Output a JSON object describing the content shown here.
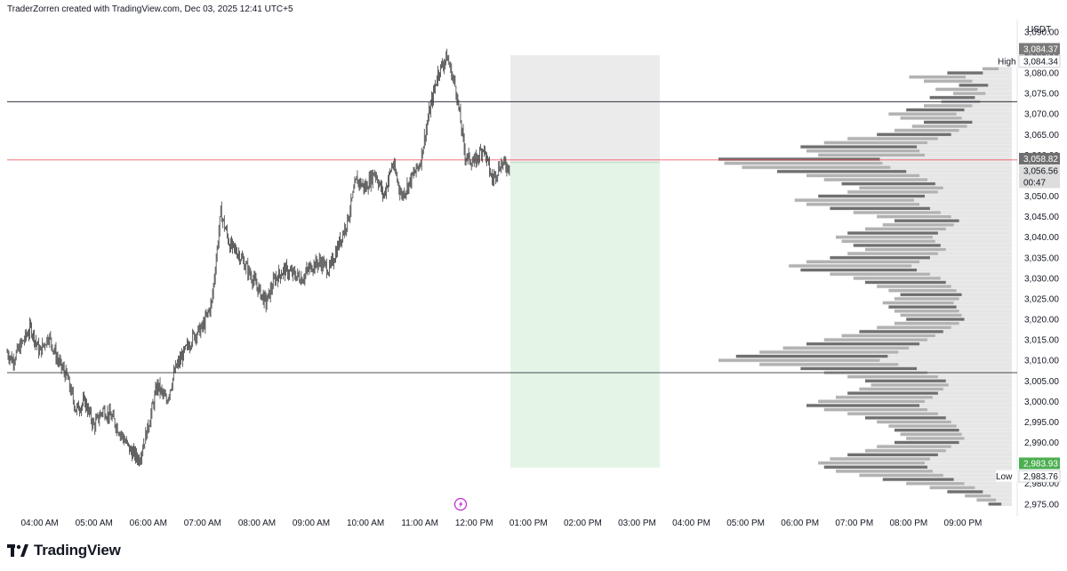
{
  "header": {
    "caption": "TraderZorren created with TradingView.com, Dec 03, 2025 12:41 UTC+5"
  },
  "footer": {
    "brand": "TradingView"
  },
  "colors": {
    "candles": "#3a3a3a",
    "price_line": "#f23645",
    "volume_profile": "#b2b2b2",
    "volume_profile_dark": "#6f6f6f",
    "volume_profile_light": "#e6e6e6",
    "stop_zone": "#e0e0e0",
    "target_zone": "#dff2e1",
    "target_label": "#4caf50",
    "level_lines": "#131722",
    "flash_icon": "#c026d3"
  },
  "chart_data": {
    "type": "line",
    "title": "",
    "currency": "USDT",
    "x_ticks": [
      "04:00 AM",
      "05:00 AM",
      "06:00 AM",
      "07:00 AM",
      "08:00 AM",
      "09:00 AM",
      "10:00 AM",
      "11:00 AM",
      "12:00 PM",
      "01:00 PM",
      "02:00 PM",
      "03:00 PM",
      "04:00 PM",
      "05:00 PM",
      "06:00 PM",
      "07:00 PM",
      "08:00 PM",
      "09:00 PM"
    ],
    "y_ticks": [
      "3,090.00",
      "3,085.00",
      "3,080.00",
      "3,075.00",
      "3,070.00",
      "3,065.00",
      "3,060.00",
      "3,055.00",
      "3,050.00",
      "3,045.00",
      "3,040.00",
      "3,035.00",
      "3,030.00",
      "3,025.00",
      "3,020.00",
      "3,015.00",
      "3,010.00",
      "3,005.00",
      "3,000.00",
      "2,995.00",
      "2,990.00",
      "2,985.00",
      "2,980.00",
      "2,975.00"
    ],
    "ylim": [
      2973,
      3093
    ],
    "price_path": [
      [
        "03:24",
        3012
      ],
      [
        "03:30",
        3010
      ],
      [
        "03:40",
        3014
      ],
      [
        "03:50",
        3018
      ],
      [
        "04:00",
        3012
      ],
      [
        "04:10",
        3016
      ],
      [
        "04:20",
        3010
      ],
      [
        "04:30",
        3006
      ],
      [
        "04:40",
        2998
      ],
      [
        "04:50",
        3000
      ],
      [
        "05:00",
        2994
      ],
      [
        "05:10",
        2998
      ],
      [
        "05:20",
        2996
      ],
      [
        "05:30",
        2992
      ],
      [
        "05:40",
        2988
      ],
      [
        "05:50",
        2986
      ],
      [
        "06:00",
        2994
      ],
      [
        "06:10",
        3004
      ],
      [
        "06:20",
        3000
      ],
      [
        "06:30",
        3008
      ],
      [
        "06:40",
        3012
      ],
      [
        "06:50",
        3016
      ],
      [
        "07:00",
        3018
      ],
      [
        "07:10",
        3024
      ],
      [
        "07:20",
        3046
      ],
      [
        "07:30",
        3038
      ],
      [
        "07:40",
        3036
      ],
      [
        "07:50",
        3032
      ],
      [
        "08:00",
        3028
      ],
      [
        "08:10",
        3024
      ],
      [
        "08:20",
        3030
      ],
      [
        "08:30",
        3032
      ],
      [
        "08:40",
        3031
      ],
      [
        "08:50",
        3030
      ],
      [
        "09:00",
        3033
      ],
      [
        "09:10",
        3034
      ],
      [
        "09:20",
        3032
      ],
      [
        "09:30",
        3038
      ],
      [
        "09:40",
        3044
      ],
      [
        "09:50",
        3054
      ],
      [
        "10:00",
        3052
      ],
      [
        "10:10",
        3056
      ],
      [
        "10:20",
        3050
      ],
      [
        "10:30",
        3058
      ],
      [
        "10:40",
        3050
      ],
      [
        "10:50",
        3054
      ],
      [
        "11:00",
        3058
      ],
      [
        "11:10",
        3070
      ],
      [
        "11:20",
        3080
      ],
      [
        "11:30",
        3084
      ],
      [
        "11:40",
        3076
      ],
      [
        "11:50",
        3060
      ],
      [
        "12:00",
        3058
      ],
      [
        "12:10",
        3062
      ],
      [
        "12:20",
        3054
      ],
      [
        "12:30",
        3058
      ],
      [
        "12:40",
        3057
      ]
    ],
    "levels": [
      3073,
      3007
    ],
    "current_price": "3,058.82",
    "current_price_value": 3058.82,
    "last_price": "3,056.56",
    "countdown": "00:47",
    "high": {
      "label": "High",
      "value": "3,084.34",
      "marker": "3,084.37"
    },
    "low": {
      "label": "Low",
      "value": "2,983.76"
    },
    "target_price": "2,983.93",
    "position": {
      "start_time": "12:40",
      "end_time": "15:25",
      "stop": 3084.3,
      "entry": 3058.3,
      "target": 2983.9
    },
    "volume_profile": [
      [
        3083.5,
        3
      ],
      [
        3082,
        6
      ],
      [
        3081,
        10
      ],
      [
        3080,
        22
      ],
      [
        3079,
        35
      ],
      [
        3078,
        30
      ],
      [
        3077,
        18
      ],
      [
        3076,
        26
      ],
      [
        3075,
        20
      ],
      [
        3074,
        28
      ],
      [
        3073,
        24
      ],
      [
        3072,
        30
      ],
      [
        3071,
        36
      ],
      [
        3070,
        42
      ],
      [
        3069,
        38
      ],
      [
        3068,
        30
      ],
      [
        3067,
        34
      ],
      [
        3066,
        40
      ],
      [
        3065,
        46
      ],
      [
        3064,
        56
      ],
      [
        3063,
        64
      ],
      [
        3062,
        72
      ],
      [
        3061,
        70
      ],
      [
        3060,
        66
      ],
      [
        3059,
        100
      ],
      [
        3058,
        98
      ],
      [
        3057,
        92
      ],
      [
        3056,
        80
      ],
      [
        3055,
        70
      ],
      [
        3054,
        64
      ],
      [
        3053,
        58
      ],
      [
        3052,
        52
      ],
      [
        3051,
        56
      ],
      [
        3050,
        66
      ],
      [
        3049,
        74
      ],
      [
        3048,
        70
      ],
      [
        3047,
        62
      ],
      [
        3046,
        54
      ],
      [
        3045,
        46
      ],
      [
        3044,
        40
      ],
      [
        3043,
        44
      ],
      [
        3042,
        50
      ],
      [
        3041,
        56
      ],
      [
        3040,
        60
      ],
      [
        3039,
        58
      ],
      [
        3038,
        54
      ],
      [
        3037,
        50
      ],
      [
        3036,
        56
      ],
      [
        3035,
        62
      ],
      [
        3034,
        70
      ],
      [
        3033,
        76
      ],
      [
        3032,
        72
      ],
      [
        3031,
        62
      ],
      [
        3030,
        54
      ],
      [
        3029,
        50
      ],
      [
        3028,
        46
      ],
      [
        3027,
        42
      ],
      [
        3026,
        38
      ],
      [
        3025,
        40
      ],
      [
        3024,
        44
      ],
      [
        3023,
        42
      ],
      [
        3022,
        40
      ],
      [
        3021,
        38
      ],
      [
        3020,
        36
      ],
      [
        3019,
        40
      ],
      [
        3018,
        46
      ],
      [
        3017,
        52
      ],
      [
        3016,
        58
      ],
      [
        3015,
        64
      ],
      [
        3014,
        70
      ],
      [
        3013,
        78
      ],
      [
        3012,
        86
      ],
      [
        3011,
        94
      ],
      [
        3010,
        100
      ],
      [
        3009,
        86
      ],
      [
        3008,
        72
      ],
      [
        3007,
        64
      ],
      [
        3006,
        56
      ],
      [
        3005,
        50
      ],
      [
        3004,
        48
      ],
      [
        3003,
        52
      ],
      [
        3002,
        56
      ],
      [
        3001,
        60
      ],
      [
        3000,
        66
      ],
      [
        2999,
        70
      ],
      [
        2998,
        64
      ],
      [
        2997,
        56
      ],
      [
        2996,
        50
      ],
      [
        2995,
        46
      ],
      [
        2994,
        42
      ],
      [
        2993,
        40
      ],
      [
        2992,
        38
      ],
      [
        2991,
        36
      ],
      [
        2990,
        40
      ],
      [
        2989,
        46
      ],
      [
        2988,
        50
      ],
      [
        2987,
        56
      ],
      [
        2986,
        62
      ],
      [
        2985,
        66
      ],
      [
        2984,
        64
      ],
      [
        2983,
        60
      ],
      [
        2982,
        52
      ],
      [
        2981,
        44
      ],
      [
        2980,
        36
      ],
      [
        2979,
        28
      ],
      [
        2978,
        22
      ],
      [
        2977,
        16
      ],
      [
        2976,
        12
      ],
      [
        2975,
        8
      ]
    ]
  }
}
